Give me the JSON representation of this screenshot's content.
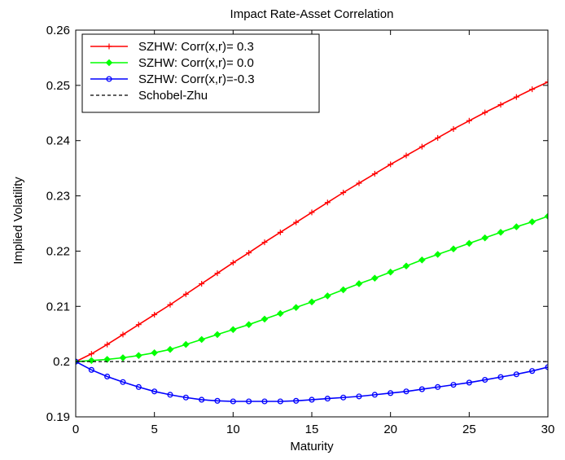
{
  "chart_data": {
    "type": "line",
    "title": "Impact Rate-Asset Correlation",
    "xlabel": "Maturity",
    "ylabel": "Implied Volatility",
    "xlim": [
      0,
      30
    ],
    "ylim": [
      0.19,
      0.26
    ],
    "xticks": [
      0,
      5,
      10,
      15,
      20,
      25,
      30
    ],
    "xtick_labels": [
      "0",
      "5",
      "10",
      "15",
      "20",
      "25",
      "30"
    ],
    "yticks": [
      0.19,
      0.2,
      0.21,
      0.22,
      0.23,
      0.24,
      0.25,
      0.26
    ],
    "ytick_labels": [
      "0.19",
      "0.2",
      "0.21",
      "0.22",
      "0.23",
      "0.24",
      "0.25",
      "0.26"
    ],
    "grid": false,
    "legend_position": "top-left",
    "x": [
      0,
      1,
      2,
      3,
      4,
      5,
      6,
      7,
      8,
      9,
      10,
      11,
      12,
      13,
      14,
      15,
      16,
      17,
      18,
      19,
      20,
      21,
      22,
      23,
      24,
      25,
      26,
      27,
      28,
      29,
      30
    ],
    "series": [
      {
        "name": "SZHW: Corr(x,r)= 0.3",
        "color": "#ff0000",
        "marker": "plus",
        "line_style": "solid",
        "values": [
          0.2,
          0.2014,
          0.2031,
          0.2049,
          0.2067,
          0.2085,
          0.2103,
          0.2122,
          0.2141,
          0.216,
          0.2179,
          0.2197,
          0.2216,
          0.2234,
          0.2252,
          0.227,
          0.2288,
          0.2306,
          0.2323,
          0.234,
          0.2357,
          0.2373,
          0.2389,
          0.2405,
          0.2421,
          0.2436,
          0.2451,
          0.2465,
          0.2479,
          0.2493,
          0.2506
        ]
      },
      {
        "name": "SZHW: Corr(x,r)= 0.0",
        "color": "#00ff00",
        "marker": "diamond",
        "line_style": "solid",
        "values": [
          0.2,
          0.2002,
          0.2004,
          0.2007,
          0.2011,
          0.2016,
          0.2022,
          0.2031,
          0.204,
          0.2049,
          0.2058,
          0.2067,
          0.2077,
          0.2087,
          0.2098,
          0.2108,
          0.2119,
          0.213,
          0.2141,
          0.2151,
          0.2162,
          0.2173,
          0.2184,
          0.2194,
          0.2204,
          0.2214,
          0.2224,
          0.2234,
          0.2244,
          0.2253,
          0.2263
        ]
      },
      {
        "name": "SZHW: Corr(x,r)=-0.3",
        "color": "#0000ff",
        "marker": "circle",
        "line_style": "solid",
        "values": [
          0.2,
          0.1985,
          0.1973,
          0.1963,
          0.1954,
          0.1946,
          0.194,
          0.1935,
          0.1931,
          0.1929,
          0.1928,
          0.1928,
          0.1928,
          0.1928,
          0.1929,
          0.1931,
          0.1933,
          0.1935,
          0.1937,
          0.194,
          0.1943,
          0.1946,
          0.195,
          0.1954,
          0.1958,
          0.1962,
          0.1967,
          0.1972,
          0.1977,
          0.1983,
          0.199
        ]
      },
      {
        "name": "Schobel-Zhu",
        "color": "#000000",
        "marker": "none",
        "line_style": "dashed",
        "values": [
          0.2,
          0.2,
          0.2,
          0.2,
          0.2,
          0.2,
          0.2,
          0.2,
          0.2,
          0.2,
          0.2,
          0.2,
          0.2,
          0.2,
          0.2,
          0.2,
          0.2,
          0.2,
          0.2,
          0.2,
          0.2,
          0.2,
          0.2,
          0.2,
          0.2,
          0.2,
          0.2,
          0.2,
          0.2,
          0.2,
          0.2
        ]
      }
    ]
  }
}
